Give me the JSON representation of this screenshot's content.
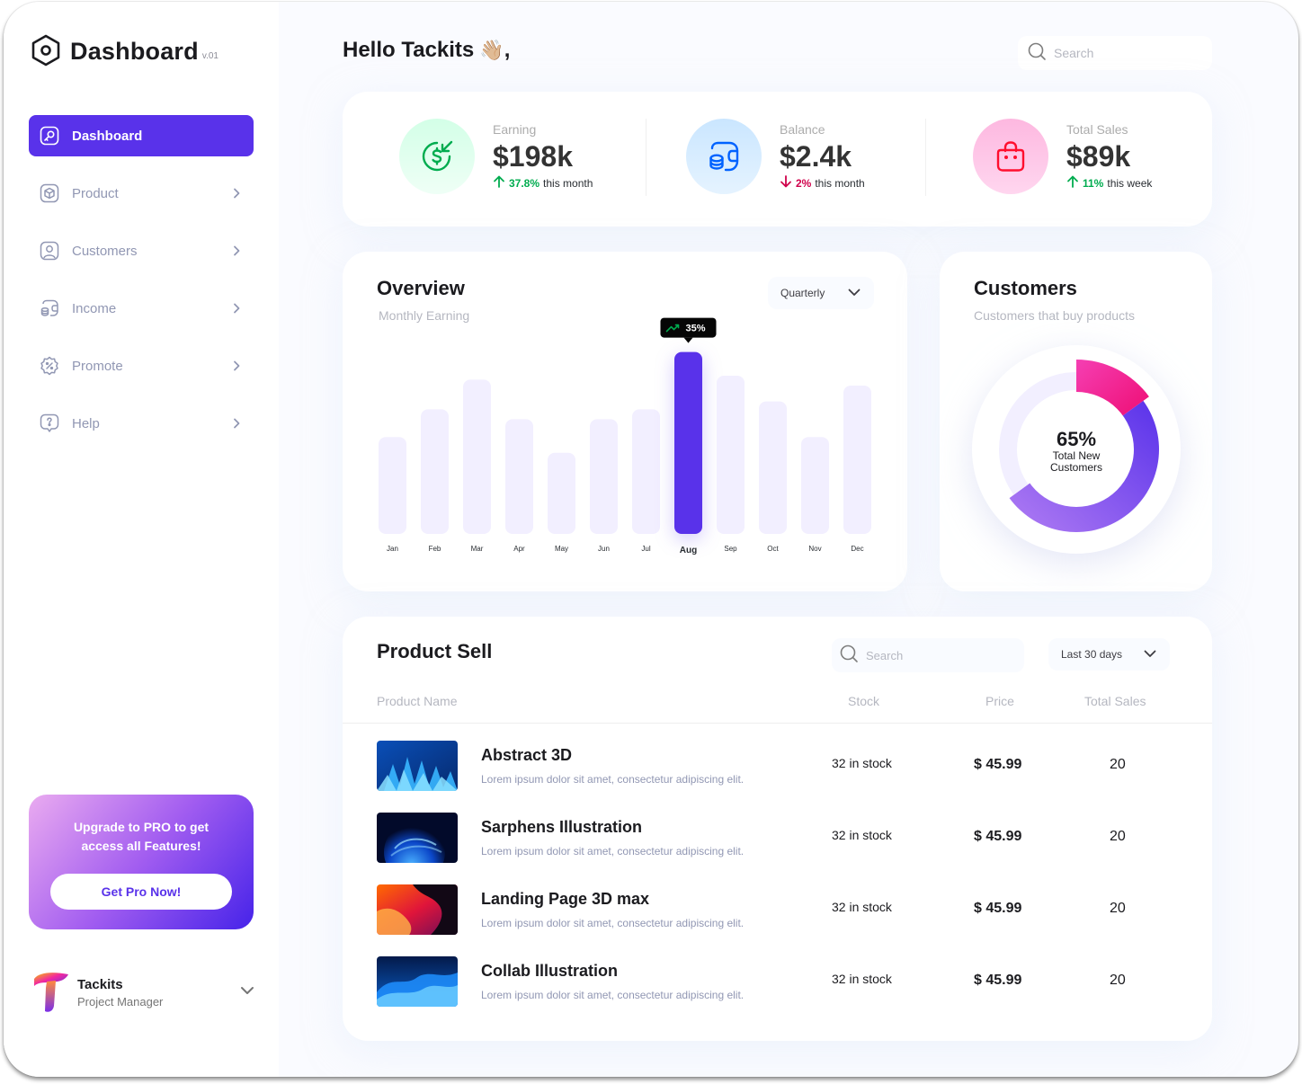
{
  "app": {
    "title": "Dashboard",
    "version": "v.01"
  },
  "sidebar": {
    "items": [
      {
        "label": "Dashboard",
        "icon": "key-icon"
      },
      {
        "label": "Product",
        "icon": "cube-icon"
      },
      {
        "label": "Customers",
        "icon": "user-square-icon"
      },
      {
        "label": "Income",
        "icon": "wallet-icon"
      },
      {
        "label": "Promote",
        "icon": "discount-badge-icon"
      },
      {
        "label": "Help",
        "icon": "help-chat-icon"
      }
    ],
    "promo": {
      "text": "Upgrade to  PRO to get access all Features!",
      "button": "Get Pro Now!"
    },
    "profile": {
      "name": "Tackits",
      "role": "Project Manager"
    }
  },
  "header": {
    "greeting": "Hello Tackits",
    "wave": "👋🏼",
    "comma": ",",
    "search_placeholder": "Search"
  },
  "stats": [
    {
      "label": "Earning",
      "value": "$198k",
      "change": "37.8%",
      "direction": "up",
      "period": "this month",
      "icon": "dollar-refresh-icon"
    },
    {
      "label": "Balance",
      "value": "$2.4k",
      "change": "2%",
      "direction": "down",
      "period": "this month",
      "icon": "wallet-coins-icon"
    },
    {
      "label": "Total Sales",
      "value": "$89k",
      "change": "11%",
      "direction": "up",
      "period": "this week",
      "icon": "shopping-bag-icon"
    }
  ],
  "overview": {
    "title": "Overview",
    "subtitle": "Monthly Earning",
    "period": "Quarterly",
    "highlight_label": "35%"
  },
  "chart_data": [
    {
      "type": "bar",
      "title": "Overview",
      "subtitle": "Monthly Earning",
      "categories": [
        "Jan",
        "Feb",
        "Mar",
        "Apr",
        "May",
        "Jun",
        "Jul",
        "Aug",
        "Sep",
        "Oct",
        "Nov",
        "Dec"
      ],
      "values": [
        49,
        63,
        78,
        58,
        41,
        58,
        63,
        92,
        80,
        67,
        49,
        75
      ],
      "ylim": [
        0,
        100
      ],
      "highlight": {
        "category": "Aug",
        "label": "35%"
      },
      "grid": false,
      "colors": {
        "bar": "#f2efff",
        "highlight": "#5932ea"
      }
    },
    {
      "type": "pie",
      "title": "Customers",
      "subtitle": "Customers that buy products",
      "slices": [
        {
          "value": 15,
          "color": "#f2289f"
        },
        {
          "value": 50,
          "color": "#5932ea"
        },
        {
          "value": 35,
          "color": "#f2efff"
        }
      ],
      "center_value": "65%",
      "center_label": "Total New Customers"
    }
  ],
  "customers": {
    "title": "Customers",
    "subtitle": "Customers that buy products",
    "center_value": "65%",
    "center_label": "Total New Customers"
  },
  "product_sell": {
    "title": "Product Sell",
    "search_placeholder": "Search",
    "period": "Last 30 days",
    "columns": {
      "name": "Product Name",
      "stock": "Stock",
      "price": "Price",
      "sales": "Total Sales"
    },
    "rows": [
      {
        "name": "Abstract 3D",
        "desc": "Lorem ipsum dolor sit amet, consectetur adipiscing elit.",
        "stock": "32 in stock",
        "price": "$ 45.99",
        "sales": "20"
      },
      {
        "name": "Sarphens Illustration",
        "desc": "Lorem ipsum dolor sit amet, consectetur adipiscing elit.",
        "stock": "32 in stock",
        "price": "$ 45.99",
        "sales": "20"
      },
      {
        "name": "Landing Page 3D max",
        "desc": "Lorem ipsum dolor sit amet, consectetur adipiscing elit.",
        "stock": "32 in stock",
        "price": "$ 45.99",
        "sales": "20"
      },
      {
        "name": "Collab Illustration",
        "desc": "Lorem ipsum dolor sit amet, consectetur adipiscing elit.",
        "stock": "32 in stock",
        "price": "$ 45.99",
        "sales": "20"
      }
    ]
  },
  "colors": {
    "accent": "#5932ea",
    "up": "#00ac4f",
    "down": "#d0004b"
  }
}
